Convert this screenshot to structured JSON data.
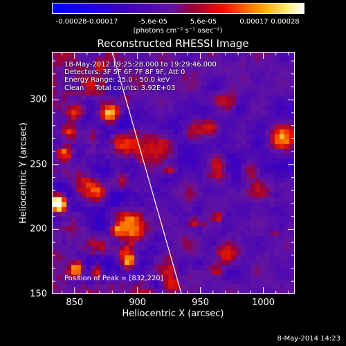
{
  "colorbar": {
    "ticks": [
      "-0.00028",
      "-0.00017",
      "-5.6e-05",
      "5.6e-05",
      "0.00017",
      "0.00028"
    ],
    "units": "(photons cm⁻² s⁻¹ asec⁻²)"
  },
  "chart_data": {
    "type": "heatmap",
    "title": "Reconstructed RHESSI Image",
    "xlabel": "Heliocentric X (arcsec)",
    "ylabel": "Heliocentric Y (arcsec)",
    "xlim": [
      832,
      1025
    ],
    "ylim": [
      150,
      337
    ],
    "x_ticks": [
      "850",
      "900",
      "950",
      "1000"
    ],
    "y_ticks": [
      "150",
      "200",
      "250",
      "300"
    ],
    "x_tick_values": [
      850,
      900,
      950,
      1000
    ],
    "y_tick_values": [
      150,
      200,
      250,
      300
    ],
    "color_range": [
      -0.00028,
      0.00028
    ],
    "limb_line": [
      [
        880,
        337
      ],
      [
        935,
        150
      ]
    ],
    "peak": [
      832,
      220
    ]
  },
  "info": {
    "line1": "18-May-2012 19:25:28.000 to 19:29:46.000",
    "line2": "Detectors: 3F 5F 6F 7F 8F 9F, Att 0",
    "line3": "Energy Range: 25.0 - 50.0 keV",
    "line4": "Clean     Total counts: 3.92E+03",
    "peak": "Position of Peak = [832,220]"
  },
  "footer": {
    "date": "8-May-2014 14:23"
  },
  "colors": {
    "background": "#000000",
    "axis": "#ffffff"
  }
}
